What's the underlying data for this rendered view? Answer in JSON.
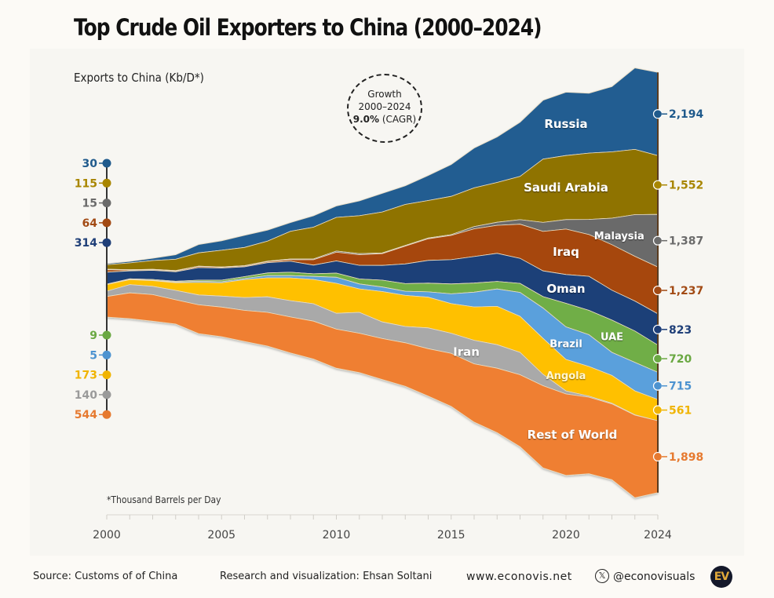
{
  "title": "Top Crude Oil Exporters to China (2000–2024)",
  "y_axis_label": "Exports to China (Kb/D*)",
  "growth_badge": {
    "line1": "Growth",
    "line2": "2000–2024",
    "value": "9.0%",
    "suffix": "(CAGR)"
  },
  "footnote": "*Thousand Barrels per Day",
  "footer": {
    "source": "Source: Customs of of China",
    "credit": "Research and visualization: Ehsan Soltani",
    "website": "www.econovis.net",
    "x_handle": "@econovisuals",
    "x_icon": "x-logo-icon",
    "logo_text": "EV"
  },
  "chart_data": {
    "type": "area",
    "subtype": "streamgraph",
    "title": "Top Crude Oil Exporters to China (2000–2024)",
    "xlabel": "",
    "ylabel": "Exports to China (Kb/D*)",
    "x": [
      2000,
      2001,
      2002,
      2003,
      2004,
      2005,
      2006,
      2007,
      2008,
      2009,
      2010,
      2011,
      2012,
      2013,
      2014,
      2015,
      2016,
      2017,
      2018,
      2019,
      2020,
      2021,
      2022,
      2023,
      2024
    ],
    "x_ticks": [
      "2000",
      "2005",
      "2010",
      "2015",
      "2020",
      "2024"
    ],
    "order_top_to_bottom": [
      "Russia",
      "Saudi Arabia",
      "Malaysia",
      "Iraq",
      "Oman",
      "UAE",
      "Brazil",
      "Angola",
      "Iran",
      "Rest of World"
    ],
    "series": [
      {
        "name": "Russia",
        "color": "#245d91",
        "label_color": "#1f5a8c",
        "start": "30",
        "end": "2,194",
        "values": [
          30,
          40,
          60,
          120,
          220,
          250,
          320,
          290,
          230,
          300,
          300,
          390,
          490,
          490,
          660,
          840,
          1050,
          1200,
          1430,
          1550,
          1670,
          1580,
          1720,
          2150,
          2194
        ]
      },
      {
        "name": "Saudi Arabia",
        "color": "#8f7300",
        "label_color": "#a88600",
        "start": "115",
        "end": "1,552",
        "values": [
          115,
          180,
          230,
          300,
          350,
          440,
          480,
          530,
          730,
          840,
          890,
          1000,
          1080,
          1080,
          990,
          1010,
          1020,
          1050,
          1140,
          1670,
          1690,
          1750,
          1750,
          1720,
          1552
        ]
      },
      {
        "name": "Malaysia",
        "color": "#6b6b6b",
        "label_color": "#6b6b6b",
        "start": "15",
        "end": "1,387",
        "values": [
          15,
          10,
          10,
          10,
          10,
          10,
          10,
          10,
          20,
          20,
          30,
          30,
          20,
          20,
          20,
          20,
          60,
          80,
          120,
          240,
          250,
          400,
          700,
          1100,
          1387
        ]
      },
      {
        "name": "Iraq",
        "color": "#a6460e",
        "label_color": "#a24a14",
        "start": "64",
        "end": "1,237",
        "values": [
          64,
          20,
          20,
          20,
          30,
          20,
          20,
          30,
          40,
          140,
          230,
          280,
          310,
          470,
          570,
          640,
          730,
          740,
          900,
          1040,
          1200,
          1100,
          1200,
          1180,
          1237
        ]
      },
      {
        "name": "Oman",
        "color": "#1f4078",
        "label_color": "#1f3f78",
        "start": "314",
        "end": "823",
        "values": [
          314,
          210,
          240,
          250,
          330,
          320,
          260,
          270,
          290,
          230,
          320,
          360,
          390,
          520,
          600,
          640,
          700,
          740,
          660,
          680,
          760,
          900,
          790,
          790,
          823
        ]
      },
      {
        "name": "UAE",
        "color": "#6fae46",
        "label_color": "#6aa842",
        "start": "9",
        "end": "720",
        "values": [
          9,
          10,
          20,
          20,
          30,
          40,
          50,
          70,
          90,
          70,
          110,
          130,
          180,
          200,
          230,
          260,
          240,
          200,
          240,
          300,
          620,
          640,
          850,
          830,
          720
        ]
      },
      {
        "name": "Brazil",
        "color": "#5aa0dc",
        "label_color": "#4d93d0",
        "start": "5",
        "end": "715",
        "values": [
          5,
          10,
          10,
          20,
          30,
          30,
          30,
          60,
          60,
          80,
          160,
          130,
          120,
          110,
          140,
          260,
          390,
          460,
          630,
          800,
          860,
          840,
          610,
          750,
          715
        ]
      },
      {
        "name": "Angola",
        "color": "#ffc000",
        "label_color": "#f0b400",
        "start": "173",
        "end": "561",
        "values": [
          173,
          130,
          150,
          200,
          330,
          350,
          470,
          500,
          600,
          640,
          790,
          620,
          800,
          820,
          810,
          780,
          880,
          1010,
          950,
          950,
          830,
          780,
          730,
          630,
          561
        ]
      },
      {
        "name": "Iran",
        "color": "#a9a9a9",
        "label_color": "#9a9a9a",
        "start": "140",
        "end": "",
        "values": [
          140,
          220,
          220,
          250,
          260,
          290,
          340,
          410,
          430,
          460,
          420,
          550,
          440,
          430,
          550,
          530,
          620,
          620,
          590,
          300,
          80,
          30,
          20,
          10,
          0
        ]
      },
      {
        "name": "Rest of World",
        "color": "#ef7f32",
        "label_color": "#e67a30",
        "start": "544",
        "end": "1,898",
        "values": [
          544,
          680,
          700,
          640,
          760,
          780,
          820,
          890,
          950,
          1000,
          1030,
          1040,
          1080,
          1150,
          1250,
          1400,
          1540,
          1700,
          1900,
          2170,
          2150,
          2020,
          2000,
          2180,
          1898
        ]
      }
    ],
    "start_labels": [
      {
        "series": "Russia",
        "value": "30"
      },
      {
        "series": "Saudi Arabia",
        "value": "115"
      },
      {
        "series": "Malaysia",
        "value": "15"
      },
      {
        "series": "Iraq",
        "value": "64"
      },
      {
        "series": "Oman",
        "value": "314"
      },
      {
        "series": "UAE",
        "value": "9"
      },
      {
        "series": "Brazil",
        "value": "5"
      },
      {
        "series": "Angola",
        "value": "173"
      },
      {
        "series": "Iran",
        "value": "140"
      },
      {
        "series": "Rest of World",
        "value": "544"
      }
    ],
    "end_labels": [
      {
        "series": "Russia",
        "value": "2,194"
      },
      {
        "series": "Saudi Arabia",
        "value": "1,552"
      },
      {
        "series": "Malaysia",
        "value": "1,387"
      },
      {
        "series": "Iraq",
        "value": "1,237"
      },
      {
        "series": "Oman",
        "value": "823"
      },
      {
        "series": "UAE",
        "value": "720"
      },
      {
        "series": "Brazil",
        "value": "715"
      },
      {
        "series": "Angola",
        "value": "561"
      },
      {
        "series": "Rest of World",
        "value": "1,898"
      }
    ],
    "inline_labels": [
      "Russia",
      "Saudi Arabia",
      "Malaysia",
      "Iraq",
      "Oman",
      "UAE",
      "Brazil",
      "Angola",
      "Iran",
      "Rest of World"
    ],
    "grid": false,
    "legend": "none"
  }
}
